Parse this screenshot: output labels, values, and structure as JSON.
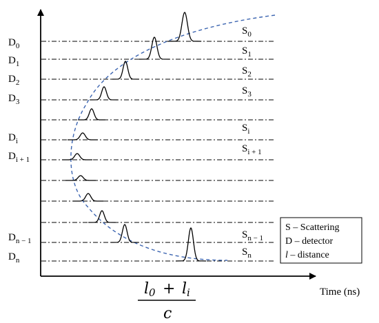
{
  "axis": {
    "x_title": "Time (ns)"
  },
  "detectors": [
    {
      "id": "d0",
      "base": "D",
      "sub": "0"
    },
    {
      "id": "d1",
      "base": "D",
      "sub": "1"
    },
    {
      "id": "d2",
      "base": "D",
      "sub": "2"
    },
    {
      "id": "d3",
      "base": "D",
      "sub": "3"
    },
    {
      "id": "di",
      "base": "D",
      "sub": "i"
    },
    {
      "id": "di1",
      "base": "D",
      "sub": "i + 1"
    },
    {
      "id": "dn1",
      "base": "D",
      "sub": "n − 1"
    },
    {
      "id": "dn",
      "base": "D",
      "sub": "n"
    }
  ],
  "scatterers": [
    {
      "id": "s0",
      "base": "S",
      "sub": "0"
    },
    {
      "id": "s1",
      "base": "S",
      "sub": "1"
    },
    {
      "id": "s2",
      "base": "S",
      "sub": "2"
    },
    {
      "id": "s3",
      "base": "S",
      "sub": "3"
    },
    {
      "id": "si",
      "base": "S",
      "sub": "i"
    },
    {
      "id": "si1",
      "base": "S",
      "sub": "i + 1"
    },
    {
      "id": "sn1",
      "base": "S",
      "sub": "n − 1"
    },
    {
      "id": "sn",
      "base": "S",
      "sub": "n"
    }
  ],
  "legend": [
    {
      "key": "S",
      "text": " – Scattering"
    },
    {
      "key": "D",
      "text": " – detector"
    },
    {
      "key": "l",
      "text": "  – distance"
    }
  ],
  "formula": {
    "num_a": "l",
    "num_a_sub": "0",
    "plus": "+",
    "num_b": "l",
    "num_b_sub": "i",
    "den": "c"
  },
  "colors": {
    "curve": "#3b64b0",
    "ink": "#000000"
  }
}
